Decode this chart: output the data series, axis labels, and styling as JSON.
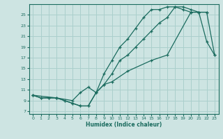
{
  "xlabel": "Humidex (Indice chaleur)",
  "bg_color": "#cde4e2",
  "grid_color": "#aacfcc",
  "line_color": "#1a6b5e",
  "xlim": [
    -0.5,
    23.5
  ],
  "ylim": [
    6.5,
    27.0
  ],
  "xticks": [
    0,
    1,
    2,
    3,
    4,
    5,
    6,
    7,
    8,
    9,
    10,
    11,
    12,
    13,
    14,
    15,
    16,
    17,
    18,
    19,
    20,
    21,
    22,
    23
  ],
  "yticks": [
    7,
    9,
    11,
    13,
    15,
    17,
    19,
    21,
    23,
    25
  ],
  "line1_x": [
    0,
    1,
    2,
    3,
    4,
    5,
    6,
    7,
    8,
    9,
    10,
    11,
    12,
    13,
    14,
    15,
    16,
    17,
    18,
    19,
    20,
    21,
    22
  ],
  "line1_y": [
    10,
    9.5,
    9.5,
    9.5,
    9.0,
    8.5,
    8.0,
    8.0,
    10.5,
    12.0,
    14.0,
    16.5,
    17.5,
    19.0,
    20.5,
    22.0,
    23.5,
    24.5,
    26.5,
    26.5,
    26.0,
    25.5,
    25.5
  ],
  "line2_x": [
    0,
    1,
    2,
    3,
    4,
    5,
    6,
    7,
    8,
    9,
    10,
    11,
    12,
    13,
    14,
    15,
    16,
    17,
    18,
    19,
    20,
    21,
    22,
    23
  ],
  "line2_y": [
    10,
    9.5,
    9.5,
    9.5,
    9.0,
    8.5,
    8.0,
    8.0,
    10.5,
    14.0,
    16.5,
    19.0,
    20.5,
    22.5,
    24.5,
    26.0,
    26.0,
    26.5,
    26.5,
    26.0,
    25.5,
    25.5,
    20.0,
    17.5
  ],
  "line3_x": [
    0,
    3,
    5,
    6,
    7,
    8,
    9,
    10,
    12,
    15,
    17,
    20,
    21,
    22,
    23
  ],
  "line3_y": [
    10,
    9.5,
    9.0,
    10.5,
    11.5,
    10.5,
    12.0,
    12.5,
    14.5,
    16.5,
    17.5,
    25.5,
    25.5,
    25.5,
    17.5
  ]
}
